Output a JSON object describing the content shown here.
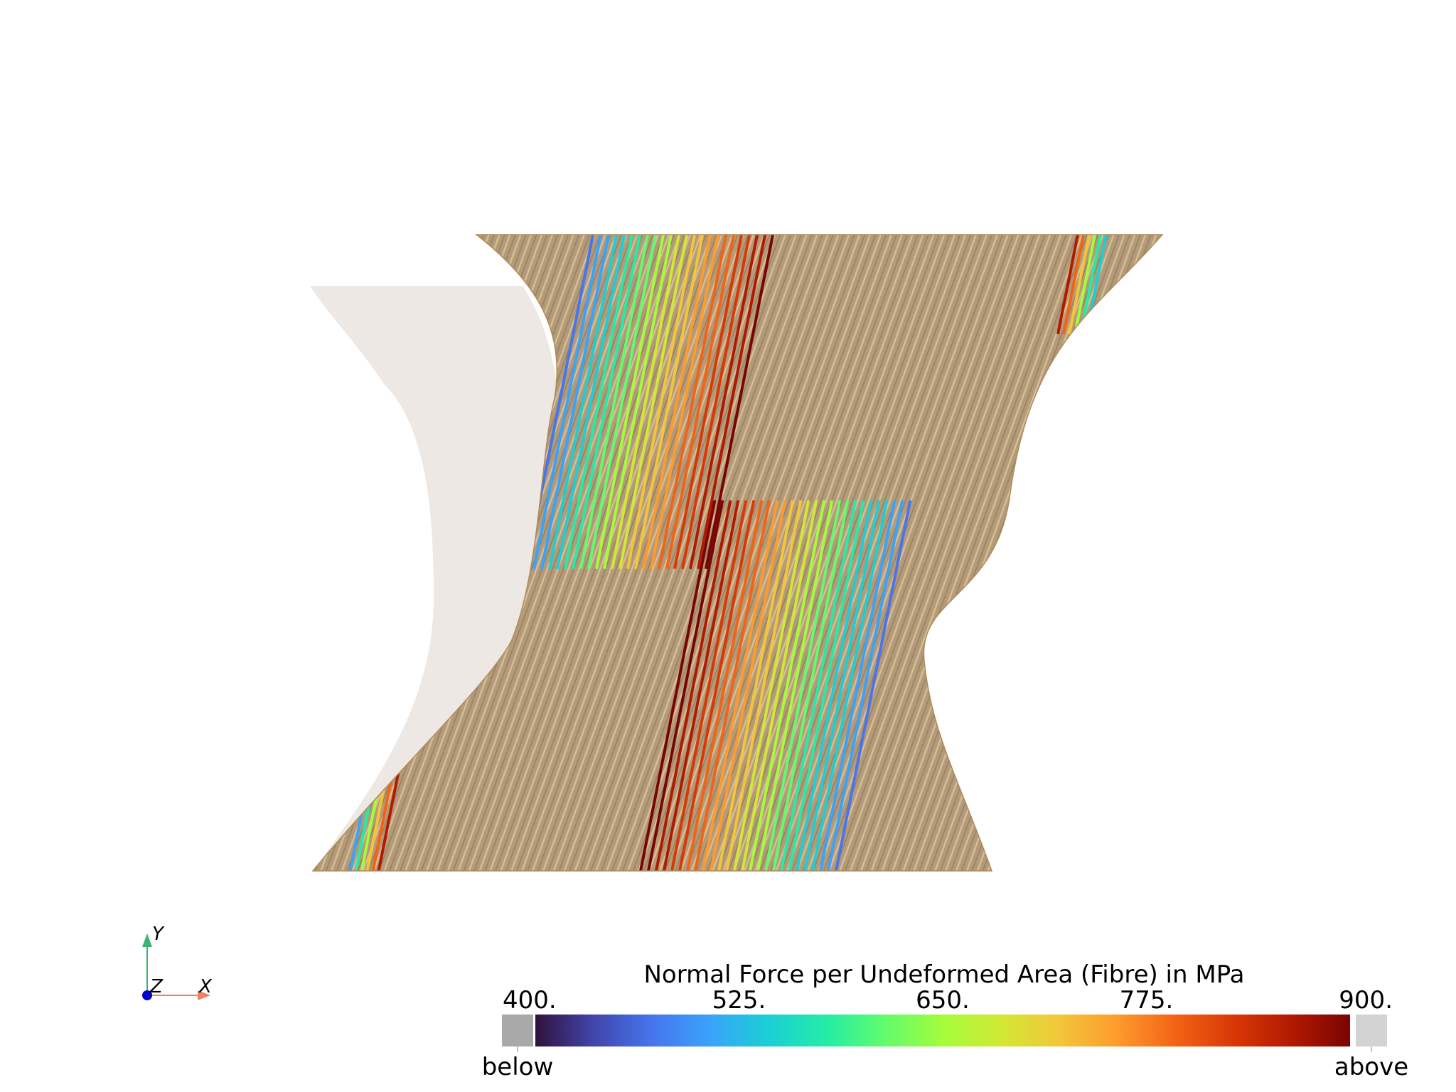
{
  "colorbar": {
    "title": "Normal Force per Undeformed Area (Fibre) in MPa",
    "min": 400,
    "max": 900,
    "ticks": [
      {
        "value": 400,
        "label": "400."
      },
      {
        "value": 525,
        "label": "525."
      },
      {
        "value": 650,
        "label": "650."
      },
      {
        "value": 775,
        "label": "775."
      },
      {
        "value": 900,
        "label": "900."
      }
    ],
    "below_label": "below",
    "above_label": "above",
    "below_color": "#a9a9a9",
    "above_color": "#d3d3d3",
    "colormap": [
      "#30123b",
      "#4145ab",
      "#4675ed",
      "#39a2fc",
      "#1bcfd4",
      "#24eca6",
      "#61fc6c",
      "#a4fc3b",
      "#d1e834",
      "#f3c63a",
      "#fe9b2d",
      "#f36315",
      "#d93806",
      "#b11901",
      "#7a0402"
    ]
  },
  "axes": {
    "x": "X",
    "y": "Y",
    "z": "Z"
  },
  "scene": {
    "specimen_color": "#b39a78",
    "fibre_color": "#c9a978",
    "reference_shape_color": "#ede8e3"
  }
}
